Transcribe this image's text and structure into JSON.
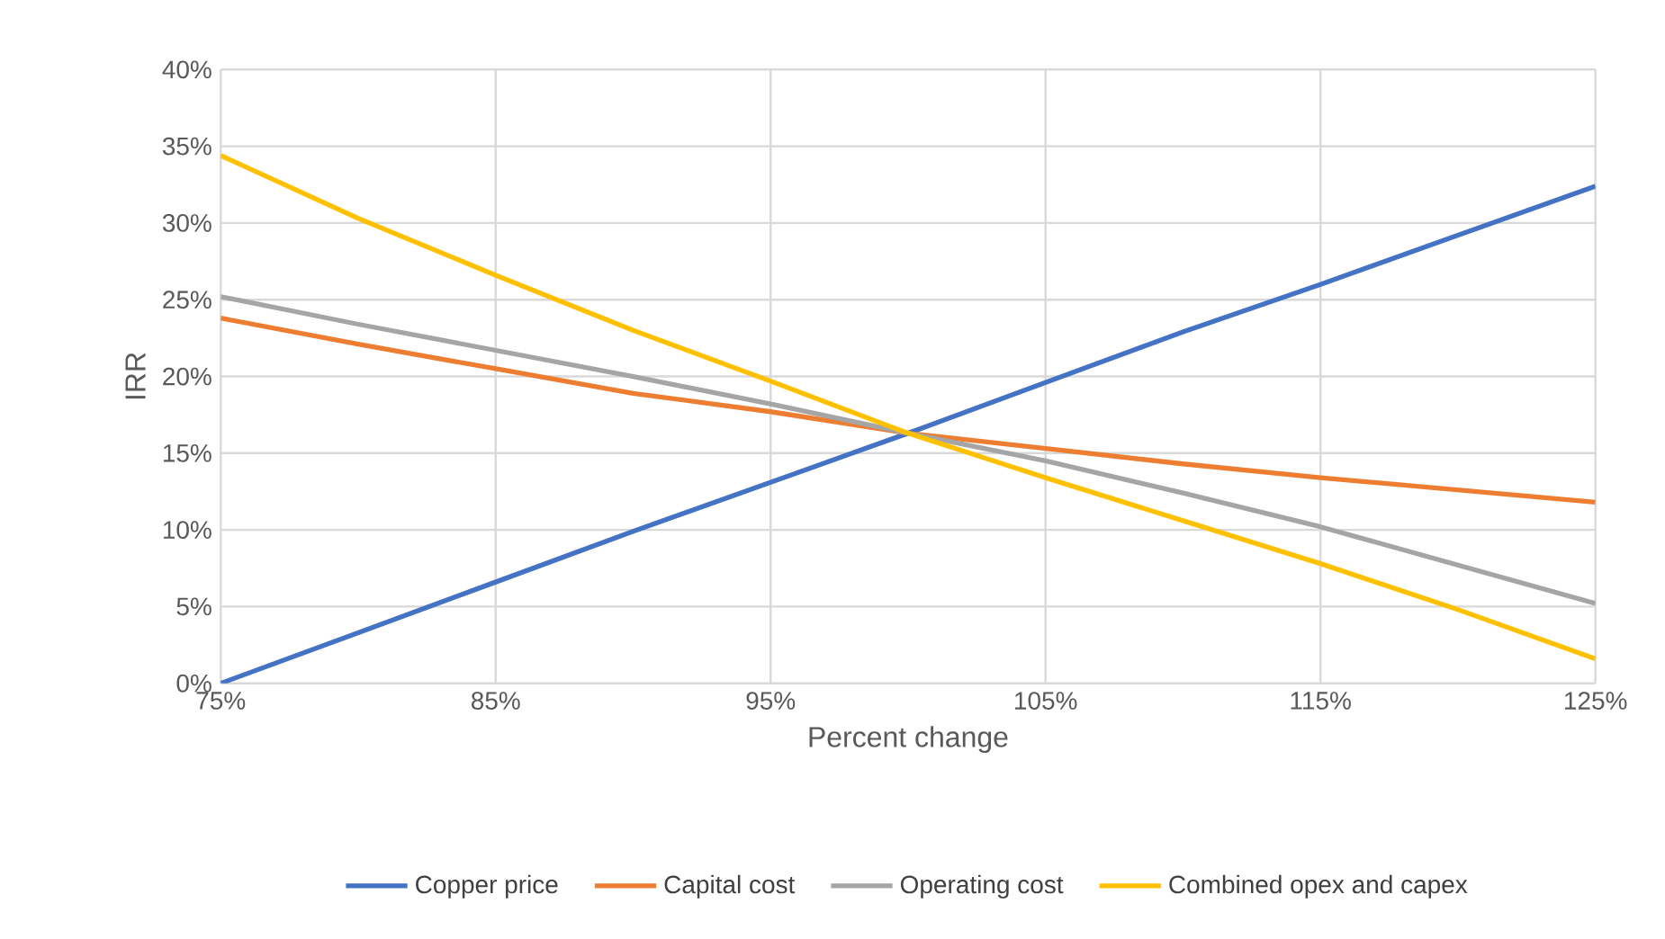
{
  "chart_data": {
    "type": "line",
    "xlabel": "Percent change",
    "ylabel": "IRR",
    "x": [
      75,
      80,
      85,
      90,
      95,
      100,
      105,
      110,
      115,
      120,
      125
    ],
    "series": [
      {
        "name": "Copper price",
        "color": "#4472c4",
        "values": [
          0,
          3.3,
          6.6,
          9.9,
          13.1,
          16.3,
          19.6,
          22.9,
          26.0,
          29.2,
          32.4
        ]
      },
      {
        "name": "Capital cost",
        "color": "#ed7d31",
        "values": [
          23.8,
          22.1,
          20.5,
          18.9,
          17.7,
          16.3,
          15.3,
          14.3,
          13.4,
          12.6,
          11.8
        ]
      },
      {
        "name": "Operating cost",
        "color": "#a5a5a5",
        "values": [
          25.2,
          23.4,
          21.7,
          20.0,
          18.2,
          16.3,
          14.5,
          12.4,
          10.2,
          7.7,
          5.2
        ]
      },
      {
        "name": "Combined opex and capex",
        "color": "#ffc000",
        "values": [
          34.4,
          30.3,
          26.6,
          23.0,
          19.7,
          16.3,
          13.4,
          10.6,
          7.8,
          4.8,
          1.6
        ]
      }
    ],
    "xlim": [
      75,
      125
    ],
    "xticks": [
      {
        "value": 75,
        "label": "75%"
      },
      {
        "value": 85,
        "label": "85%"
      },
      {
        "value": 95,
        "label": "95%"
      },
      {
        "value": 105,
        "label": "105%"
      },
      {
        "value": 115,
        "label": "115%"
      },
      {
        "value": 125,
        "label": "125%"
      }
    ],
    "ylim": [
      0,
      40
    ],
    "yticks": [
      {
        "value": 0,
        "label": "0%"
      },
      {
        "value": 5,
        "label": "5%"
      },
      {
        "value": 10,
        "label": "10%"
      },
      {
        "value": 15,
        "label": "15%"
      },
      {
        "value": 20,
        "label": "20%"
      },
      {
        "value": 25,
        "label": "25%"
      },
      {
        "value": 30,
        "label": "30%"
      },
      {
        "value": 35,
        "label": "35%"
      },
      {
        "value": 40,
        "label": "40%"
      }
    ],
    "grid": true,
    "legend": "bottom",
    "marker": "none",
    "line_style": "solid"
  }
}
